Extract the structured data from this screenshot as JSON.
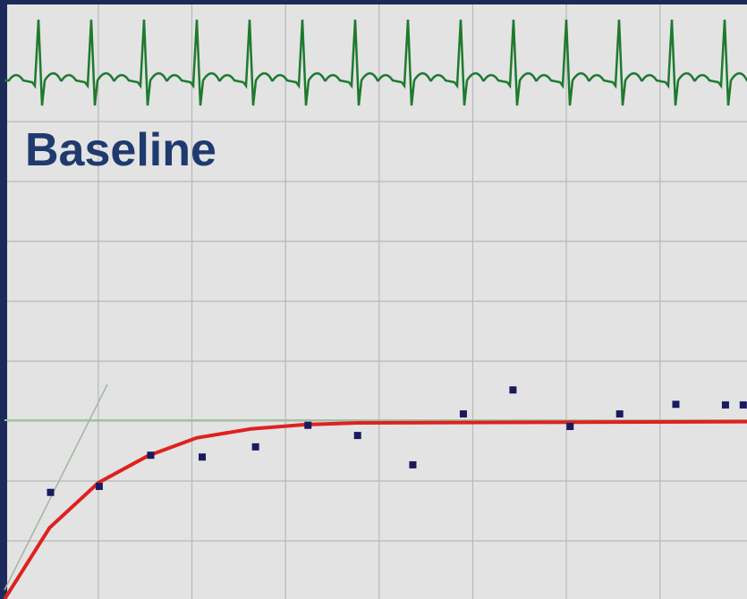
{
  "chart_data": {
    "type": "scatter",
    "title": "Baseline",
    "x": [
      0.49,
      1.01,
      1.56,
      2.11,
      2.68,
      3.24,
      3.77,
      4.36,
      4.9,
      5.43,
      6.04,
      6.57,
      7.17,
      7.7,
      7.89
    ],
    "values": [
      0.81,
      0.91,
      1.43,
      1.4,
      1.57,
      1.93,
      1.76,
      1.27,
      2.12,
      2.52,
      1.91,
      2.12,
      2.28,
      2.27,
      2.27
    ],
    "color": "#1a1a5e",
    "fit": {
      "x": [
        0,
        0.48,
        1.0,
        1.53,
        2.05,
        2.63,
        3.2,
        3.77,
        7.93
      ],
      "values": [
        -0.97,
        0.22,
        0.97,
        1.42,
        1.72,
        1.87,
        1.94,
        1.97,
        1.99
      ],
      "color": "#e02020"
    },
    "xlim": [
      -0.05,
      7.93
    ],
    "ylim": [
      -0.97,
      9.03
    ],
    "xticks": [
      1,
      2,
      3,
      4,
      5,
      6,
      7
    ],
    "yticks": [
      0,
      1,
      2,
      3,
      4,
      5,
      6,
      7
    ],
    "grid": true
  }
}
